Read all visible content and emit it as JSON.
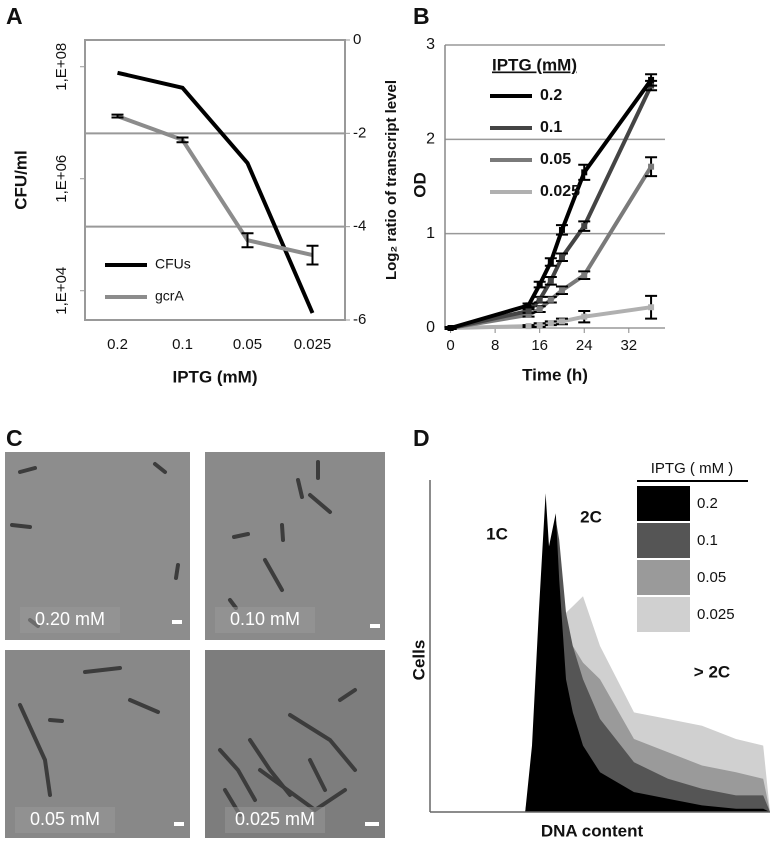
{
  "chart_data": [
    {
      "panel_label": "A",
      "type": "line",
      "categories": [
        "0.2",
        "0.1",
        "0.05",
        "0.025"
      ],
      "xlabel": "IPTG (mM)",
      "ylabel": "CFU/ml",
      "y2label": "Log₂ ratio of transcript level",
      "ylog": true,
      "ylim": [
        3000,
        300000000
      ],
      "yticks": [
        {
          "value": 10000,
          "label": "1,E+04"
        },
        {
          "value": 1000000,
          "label": "1,E+06"
        },
        {
          "value": 100000000,
          "label": "1,E+08"
        }
      ],
      "y2lim": [
        -6,
        0
      ],
      "y2ticks": [
        -6,
        -4,
        -2,
        0
      ],
      "grid": true,
      "legend": "bottom-left",
      "series": [
        {
          "name": "CFUs",
          "color": "#000000",
          "values": [
            78000000,
            42000000,
            1900000,
            4000
          ]
        },
        {
          "name": "gcrA",
          "color": "#8c8c8c",
          "axis": "y2",
          "values": [
            -1.63,
            -2.14,
            -4.29,
            -4.61
          ],
          "errors": [
            0.03,
            0.05,
            0.15,
            0.2
          ]
        }
      ]
    },
    {
      "panel_label": "B",
      "type": "line",
      "x": [
        0,
        14,
        16,
        18,
        20,
        24,
        36
      ],
      "xlim": [
        -1,
        38.5
      ],
      "xticks": [
        0,
        8,
        16,
        24,
        32
      ],
      "ylim": [
        0,
        3
      ],
      "yticks": [
        0,
        1,
        2,
        3
      ],
      "grid": true,
      "xlabel": "Time (h)",
      "ylabel": "OD",
      "legend_title": "IPTG (mM)",
      "legend": "top-left",
      "series": [
        {
          "name": "0.2",
          "color": "#000000",
          "values": [
            0,
            0.24,
            0.46,
            0.7,
            1.04,
            1.65,
            2.63
          ],
          "errors": [
            0.01,
            0.02,
            0.03,
            0.04,
            0.05,
            0.08,
            0.06
          ]
        },
        {
          "name": "0.1",
          "color": "#444444",
          "values": [
            0,
            0.18,
            0.3,
            0.5,
            0.75,
            1.08,
            2.57
          ],
          "errors": [
            0.01,
            0.02,
            0.03,
            0.04,
            0.04,
            0.05,
            0.05
          ]
        },
        {
          "name": "0.05",
          "color": "#7a7a7a",
          "values": [
            0,
            0.14,
            0.2,
            0.3,
            0.4,
            0.56,
            1.71
          ],
          "errors": [
            0.01,
            0.02,
            0.03,
            0.03,
            0.04,
            0.04,
            0.1
          ]
        },
        {
          "name": "0.025",
          "color": "#b0b0b0",
          "values": [
            0,
            0.02,
            0.03,
            0.05,
            0.07,
            0.12,
            0.22
          ],
          "errors": [
            0.01,
            0.01,
            0.02,
            0.02,
            0.03,
            0.06,
            0.12
          ]
        }
      ]
    },
    {
      "panel_label": "D",
      "type": "area",
      "x": [
        0,
        28,
        30,
        32,
        34,
        35,
        36,
        37,
        38,
        40,
        42,
        45,
        50,
        60,
        70,
        80,
        90,
        98,
        100
      ],
      "xlim": [
        0,
        100
      ],
      "ylim": [
        0,
        100
      ],
      "xlabel": "DNA content",
      "ylabel": "Cells",
      "legend_title": "IPTG ( mM )",
      "legend": "top-right",
      "annotations": [
        "1C",
        "2C",
        "> 2C"
      ],
      "series": [
        {
          "name": "0.2",
          "color": "#000000",
          "values": [
            0,
            0,
            20,
            60,
            96,
            80,
            85,
            90,
            70,
            40,
            30,
            20,
            12,
            6,
            4,
            2,
            1,
            1,
            0
          ]
        },
        {
          "name": "0.1",
          "color": "#555555",
          "values": [
            0,
            0,
            15,
            50,
            85,
            75,
            80,
            88,
            82,
            60,
            50,
            40,
            28,
            15,
            10,
            7,
            5,
            5,
            0
          ]
        },
        {
          "name": "0.05",
          "color": "#9a9a9a",
          "values": [
            0,
            0,
            10,
            30,
            55,
            50,
            55,
            60,
            60,
            55,
            50,
            45,
            40,
            22,
            18,
            14,
            12,
            10,
            0
          ]
        },
        {
          "name": "0.025",
          "color": "#d0d0d0",
          "values": [
            0,
            0,
            5,
            20,
            40,
            40,
            45,
            55,
            58,
            60,
            62,
            65,
            50,
            30,
            28,
            26,
            22,
            20,
            0
          ]
        }
      ]
    }
  ],
  "micrographs": {
    "panel_label": "C",
    "labels": [
      "0.20 mM",
      "0.10 mM",
      "0.05 mM",
      "0.025 mM"
    ]
  }
}
